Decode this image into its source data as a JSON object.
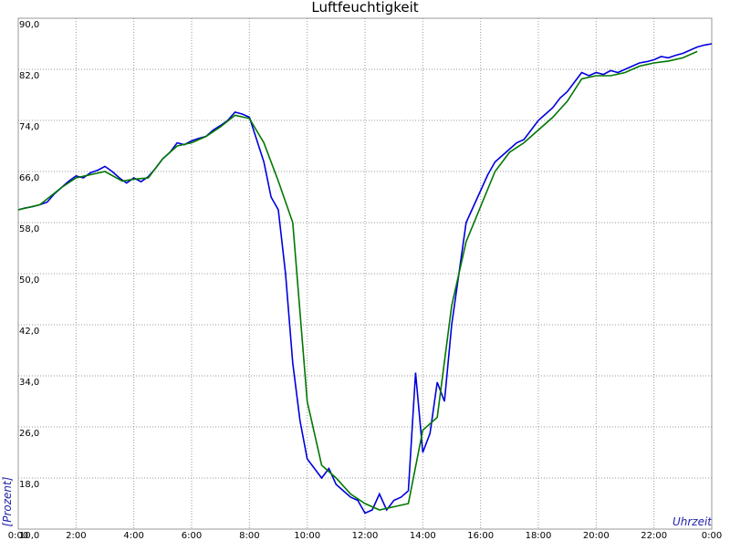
{
  "chart_data": {
    "type": "line",
    "title": "Luftfeuchtigkeit",
    "y_label": "[Prozent]",
    "x_label": "Uhrzeit",
    "xlim": [
      0,
      24
    ],
    "ylim": [
      10,
      90
    ],
    "grid": true,
    "xticks": [
      {
        "value": 0,
        "label": "0:00"
      },
      {
        "value": 2,
        "label": "2:00"
      },
      {
        "value": 4,
        "label": "4:00"
      },
      {
        "value": 6,
        "label": "6:00"
      },
      {
        "value": 8,
        "label": "8:00"
      },
      {
        "value": 10,
        "label": "10:00"
      },
      {
        "value": 12,
        "label": "12:00"
      },
      {
        "value": 14,
        "label": "14:00"
      },
      {
        "value": 16,
        "label": "16:00"
      },
      {
        "value": 18,
        "label": "18:00"
      },
      {
        "value": 20,
        "label": "20:00"
      },
      {
        "value": 22,
        "label": "22:00"
      },
      {
        "value": 24,
        "label": "0:00"
      }
    ],
    "yticks": [
      {
        "value": 10,
        "label": "10,0"
      },
      {
        "value": 18,
        "label": "18,0"
      },
      {
        "value": 26,
        "label": "26,0"
      },
      {
        "value": 34,
        "label": "34,0"
      },
      {
        "value": 42,
        "label": "42,0"
      },
      {
        "value": 50,
        "label": "50,0"
      },
      {
        "value": 58,
        "label": "58,0"
      },
      {
        "value": 66,
        "label": "66,0"
      },
      {
        "value": 74,
        "label": "74,0"
      },
      {
        "value": 82,
        "label": "82,0"
      },
      {
        "value": 90,
        "label": "90,0"
      }
    ],
    "series": [
      {
        "color": "#0000dd",
        "x": [
          0,
          0.25,
          0.5,
          0.75,
          1,
          1.25,
          1.5,
          1.75,
          2,
          2.25,
          2.5,
          2.75,
          3,
          3.25,
          3.5,
          3.75,
          4,
          4.25,
          4.5,
          4.75,
          5,
          5.25,
          5.5,
          5.75,
          6,
          6.25,
          6.5,
          6.75,
          7,
          7.25,
          7.5,
          7.75,
          8,
          8.25,
          8.5,
          8.75,
          9,
          9.25,
          9.5,
          9.75,
          10,
          10.25,
          10.5,
          10.75,
          11,
          11.25,
          11.5,
          11.75,
          12,
          12.25,
          12.5,
          12.75,
          13,
          13.25,
          13.5,
          13.75,
          14,
          14.25,
          14.5,
          14.75,
          15,
          15.25,
          15.5,
          15.75,
          16,
          16.25,
          16.5,
          16.75,
          17,
          17.25,
          17.5,
          17.75,
          18,
          18.25,
          18.5,
          18.75,
          19,
          19.25,
          19.5,
          19.75,
          20,
          20.25,
          20.5,
          20.75,
          21,
          21.25,
          21.5,
          21.75,
          22,
          22.25,
          22.5,
          22.75,
          23,
          23.25,
          23.5,
          23.75,
          24
        ],
        "values": [
          60.0,
          60.3,
          60.5,
          60.8,
          61.2,
          62.5,
          63.5,
          64.5,
          65.3,
          65.0,
          65.8,
          66.2,
          66.8,
          66.0,
          65.0,
          64.2,
          65.0,
          64.4,
          65.2,
          66.5,
          68.0,
          69.0,
          70.5,
          70.2,
          70.8,
          71.2,
          71.5,
          72.5,
          73.2,
          74.0,
          75.3,
          75.0,
          74.5,
          71.0,
          67.5,
          62.0,
          60.0,
          50.0,
          36.0,
          27.0,
          21.0,
          19.5,
          18.0,
          19.5,
          17.0,
          16.0,
          15.0,
          14.5,
          12.5,
          13.0,
          15.5,
          13.0,
          14.5,
          15.0,
          16.0,
          34.5,
          22.0,
          25.0,
          33.0,
          30.0,
          42.0,
          50.0,
          58.0,
          60.5,
          63.0,
          65.5,
          67.5,
          68.5,
          69.5,
          70.5,
          71.0,
          72.5,
          74.0,
          75.0,
          76.0,
          77.5,
          78.5,
          80.0,
          81.5,
          81.0,
          81.5,
          81.2,
          81.8,
          81.5,
          82.0,
          82.5,
          83.0,
          83.2,
          83.5,
          84.0,
          83.8,
          84.2,
          84.5,
          85.0,
          85.5,
          85.8,
          86.0
        ]
      },
      {
        "color": "#007700",
        "x": [
          0,
          0.75,
          1.5,
          2,
          3,
          3.6,
          4,
          4.5,
          5,
          5.5,
          6,
          6.5,
          7,
          7.5,
          8,
          8.5,
          9,
          9.5,
          10,
          10.5,
          11,
          11.5,
          12,
          12.5,
          13,
          13.5,
          14,
          14.5,
          15,
          15.5,
          16,
          16.5,
          17,
          17.5,
          18,
          18.5,
          19,
          19.5,
          20,
          20.5,
          21,
          21.5,
          22,
          22.5,
          23,
          23.5
        ],
        "values": [
          60,
          60.8,
          63.5,
          65,
          66,
          64.5,
          64.8,
          65,
          68,
          70,
          70.5,
          71.5,
          73,
          74.8,
          74.3,
          70.5,
          64.5,
          58,
          30,
          20,
          18,
          15.5,
          14,
          13,
          13.5,
          14,
          25.5,
          27.5,
          45,
          55,
          60.5,
          66,
          69,
          70.5,
          72.5,
          74.5,
          77,
          80.5,
          81,
          81,
          81.5,
          82.5,
          83,
          83.3,
          83.8,
          84.8
        ]
      }
    ]
  }
}
